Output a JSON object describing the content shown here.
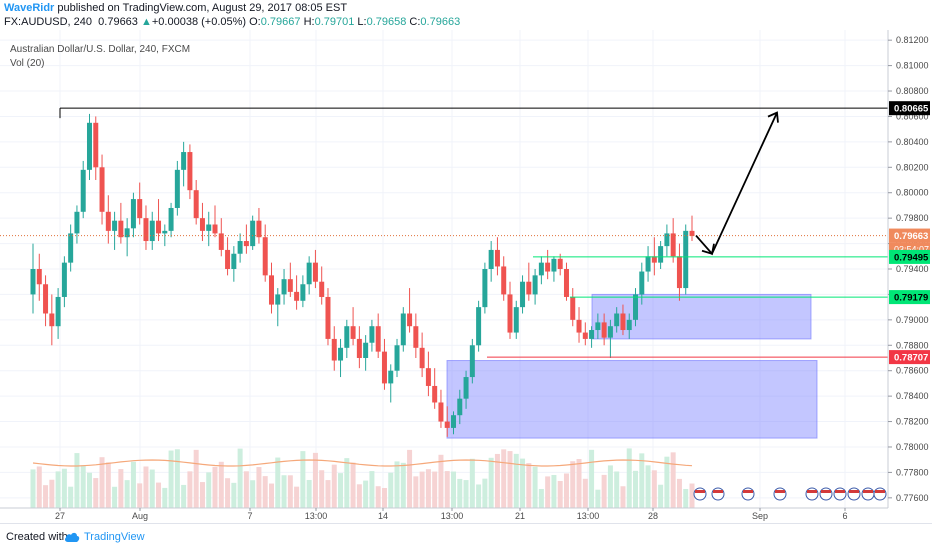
{
  "header": {
    "author": "WaveRidr",
    "published": " published on TradingView.com, August 29, 2017 08:05 EST",
    "symbol": "FX:AUDUSD, 240",
    "last": "0.79663",
    "change": "+0.00038 (+0.05%)",
    "o_label": "O:",
    "o": "0.79667",
    "h_label": "H:",
    "h": "0.79701",
    "l_label": "L:",
    "l": "0.79658",
    "c_label": "C:",
    "c": "0.79663"
  },
  "chart_info": {
    "title": "Australian Dollar/U.S. Dollar, 240, FXCM",
    "volume_label": "Vol (20)"
  },
  "footer": {
    "created_with": "Created with",
    "brand": "TradingView"
  },
  "chart_data": {
    "type": "candlestick",
    "ylim": [
      0.776,
      0.813
    ],
    "y_ticks": [
      "0.81200",
      "0.81000",
      "0.80800",
      "0.80600",
      "0.80400",
      "0.80200",
      "0.80000",
      "0.79800",
      "0.79600",
      "0.79400",
      "0.79200",
      "0.79000",
      "0.78800",
      "0.78600",
      "0.78400",
      "0.78200",
      "0.78000",
      "0.77800",
      "0.77600"
    ],
    "x_ticks": [
      "27",
      "Aug",
      "7",
      "13:00",
      "14",
      "13:00",
      "21",
      "13:00",
      "28",
      "Sep",
      "6"
    ],
    "price_labels": {
      "target": "0.80665",
      "current": "0.79663",
      "countdown": "03:54:07",
      "level_upper": "0.79495",
      "level_mid": "0.79179",
      "level_red": "0.78707"
    },
    "horizontal_levels": [
      {
        "price": 0.80665,
        "color": "#000000",
        "from_date": "Jul 27"
      },
      {
        "price": 0.79495,
        "color": "#00e676",
        "from_date": "Aug 22"
      },
      {
        "price": 0.79179,
        "color": "#00e676",
        "from_date": "Aug 24"
      },
      {
        "price": 0.78707,
        "color": "#f23645",
        "from_date": "Aug 21"
      }
    ],
    "zones": [
      {
        "price_top": 0.7868,
        "price_bottom": 0.7807,
        "from_date": "Aug 16",
        "to_date": "Sep 4",
        "color": "#7b80ff"
      },
      {
        "price_top": 0.792,
        "price_bottom": 0.7885,
        "from_date": "Aug 24",
        "to_date": "Sep 4",
        "color": "#7b80ff"
      }
    ],
    "projection_path": [
      0.79663,
      0.7952,
      0.8063
    ],
    "candles": [
      [
        0.792,
        0.796,
        0.7905,
        0.794
      ],
      [
        0.794,
        0.7952,
        0.7915,
        0.7928
      ],
      [
        0.7928,
        0.7935,
        0.7895,
        0.7905
      ],
      [
        0.7905,
        0.792,
        0.788,
        0.7895
      ],
      [
        0.7895,
        0.7925,
        0.7885,
        0.7918
      ],
      [
        0.7918,
        0.795,
        0.791,
        0.7945
      ],
      [
        0.7945,
        0.7975,
        0.7938,
        0.7968
      ],
      [
        0.7968,
        0.799,
        0.796,
        0.7985
      ],
      [
        0.7985,
        0.8025,
        0.798,
        0.8018
      ],
      [
        0.8018,
        0.8062,
        0.801,
        0.8055
      ],
      [
        0.8055,
        0.806,
        0.801,
        0.802
      ],
      [
        0.802,
        0.803,
        0.7975,
        0.7985
      ],
      [
        0.7985,
        0.7998,
        0.796,
        0.797
      ],
      [
        0.797,
        0.7985,
        0.7955,
        0.7978
      ],
      [
        0.7978,
        0.7992,
        0.796,
        0.7965
      ],
      [
        0.7965,
        0.798,
        0.795,
        0.7972
      ],
      [
        0.7972,
        0.8,
        0.7965,
        0.7995
      ],
      [
        0.7995,
        0.8008,
        0.7975,
        0.798
      ],
      [
        0.798,
        0.799,
        0.7955,
        0.7962
      ],
      [
        0.7962,
        0.7985,
        0.7955,
        0.7978
      ],
      [
        0.7978,
        0.7995,
        0.7962,
        0.7968
      ],
      [
        0.7968,
        0.7975,
        0.7958,
        0.797
      ],
      [
        0.797,
        0.7992,
        0.7965,
        0.7988
      ],
      [
        0.7988,
        0.8025,
        0.7982,
        0.8018
      ],
      [
        0.8018,
        0.804,
        0.8005,
        0.8032
      ],
      [
        0.8032,
        0.8038,
        0.7995,
        0.8002
      ],
      [
        0.8002,
        0.801,
        0.7975,
        0.798
      ],
      [
        0.798,
        0.7992,
        0.7962,
        0.797
      ],
      [
        0.797,
        0.7985,
        0.7958,
        0.7975
      ],
      [
        0.7975,
        0.799,
        0.7965,
        0.7968
      ],
      [
        0.7968,
        0.798,
        0.795,
        0.7955
      ],
      [
        0.7955,
        0.7965,
        0.7935,
        0.794
      ],
      [
        0.794,
        0.7958,
        0.793,
        0.7952
      ],
      [
        0.7952,
        0.7968,
        0.7945,
        0.7962
      ],
      [
        0.7962,
        0.7975,
        0.7952,
        0.7958
      ],
      [
        0.7958,
        0.7982,
        0.7955,
        0.7978
      ],
      [
        0.7978,
        0.7988,
        0.796,
        0.7965
      ],
      [
        0.7965,
        0.7975,
        0.793,
        0.7935
      ],
      [
        0.7935,
        0.7945,
        0.7905,
        0.7912
      ],
      [
        0.7912,
        0.7925,
        0.7895,
        0.792
      ],
      [
        0.792,
        0.794,
        0.7912,
        0.7932
      ],
      [
        0.7932,
        0.7945,
        0.7918,
        0.7922
      ],
      [
        0.7922,
        0.7935,
        0.7908,
        0.7915
      ],
      [
        0.7915,
        0.7935,
        0.791,
        0.7928
      ],
      [
        0.7928,
        0.795,
        0.792,
        0.7945
      ],
      [
        0.7945,
        0.7955,
        0.7925,
        0.793
      ],
      [
        0.793,
        0.7942,
        0.7912,
        0.7918
      ],
      [
        0.7918,
        0.7925,
        0.788,
        0.7885
      ],
      [
        0.7885,
        0.7895,
        0.786,
        0.7868
      ],
      [
        0.7868,
        0.7885,
        0.7855,
        0.7878
      ],
      [
        0.7878,
        0.79,
        0.787,
        0.7895
      ],
      [
        0.7895,
        0.791,
        0.788,
        0.7885
      ],
      [
        0.7885,
        0.7895,
        0.7862,
        0.787
      ],
      [
        0.787,
        0.7888,
        0.786,
        0.7882
      ],
      [
        0.7882,
        0.79,
        0.7875,
        0.7895
      ],
      [
        0.7895,
        0.7905,
        0.787,
        0.7875
      ],
      [
        0.7875,
        0.7885,
        0.7845,
        0.785
      ],
      [
        0.785,
        0.7865,
        0.7835,
        0.786
      ],
      [
        0.786,
        0.7885,
        0.7855,
        0.788
      ],
      [
        0.788,
        0.791,
        0.7875,
        0.7905
      ],
      [
        0.7905,
        0.7925,
        0.789,
        0.7895
      ],
      [
        0.7895,
        0.7905,
        0.787,
        0.7878
      ],
      [
        0.7878,
        0.789,
        0.7855,
        0.7862
      ],
      [
        0.7862,
        0.7875,
        0.784,
        0.7848
      ],
      [
        0.7848,
        0.7862,
        0.783,
        0.7835
      ],
      [
        0.7835,
        0.7845,
        0.7815,
        0.782
      ],
      [
        0.782,
        0.7832,
        0.7808,
        0.7815
      ],
      [
        0.7815,
        0.7828,
        0.781,
        0.7825
      ],
      [
        0.7825,
        0.7845,
        0.7818,
        0.7838
      ],
      [
        0.7838,
        0.786,
        0.783,
        0.7855
      ],
      [
        0.7855,
        0.7885,
        0.785,
        0.788
      ],
      [
        0.788,
        0.7915,
        0.7875,
        0.791
      ],
      [
        0.791,
        0.7945,
        0.7905,
        0.794
      ],
      [
        0.794,
        0.7962,
        0.793,
        0.7955
      ],
      [
        0.7955,
        0.7965,
        0.7935,
        0.7942
      ],
      [
        0.7942,
        0.795,
        0.7915,
        0.792
      ],
      [
        0.792,
        0.793,
        0.7885,
        0.789
      ],
      [
        0.789,
        0.7915,
        0.7885,
        0.791
      ],
      [
        0.791,
        0.7935,
        0.7905,
        0.793
      ],
      [
        0.793,
        0.7945,
        0.7915,
        0.792
      ],
      [
        0.792,
        0.794,
        0.7912,
        0.7935
      ],
      [
        0.7935,
        0.795,
        0.7928,
        0.7945
      ],
      [
        0.7945,
        0.7955,
        0.7932,
        0.7938
      ],
      [
        0.7938,
        0.795,
        0.793,
        0.7948
      ],
      [
        0.7948,
        0.7952,
        0.7935,
        0.794
      ],
      [
        0.794,
        0.7945,
        0.7915,
        0.7918
      ],
      [
        0.7918,
        0.7925,
        0.7895,
        0.79
      ],
      [
        0.79,
        0.791,
        0.7882,
        0.789
      ],
      [
        0.789,
        0.7898,
        0.788,
        0.7885
      ],
      [
        0.7885,
        0.7895,
        0.7878,
        0.7892
      ],
      [
        0.7892,
        0.7905,
        0.7885,
        0.7898
      ],
      [
        0.7898,
        0.7905,
        0.788,
        0.7886
      ],
      [
        0.7886,
        0.79,
        0.787,
        0.7895
      ],
      [
        0.7895,
        0.791,
        0.789,
        0.7905
      ],
      [
        0.7905,
        0.7912,
        0.7888,
        0.7892
      ],
      [
        0.7892,
        0.7905,
        0.7885,
        0.79
      ],
      [
        0.79,
        0.7925,
        0.7895,
        0.792
      ],
      [
        0.792,
        0.7945,
        0.7912,
        0.7938
      ],
      [
        0.7938,
        0.7958,
        0.793,
        0.795
      ],
      [
        0.795,
        0.7965,
        0.7935,
        0.7945
      ],
      [
        0.7945,
        0.7962,
        0.794,
        0.7958
      ],
      [
        0.7958,
        0.7975,
        0.795,
        0.7968
      ],
      [
        0.7968,
        0.798,
        0.7945,
        0.795
      ],
      [
        0.795,
        0.796,
        0.7915,
        0.7925
      ],
      [
        0.7925,
        0.7975,
        0.792,
        0.797
      ],
      [
        0.797,
        0.7982,
        0.7962,
        0.7966
      ]
    ]
  }
}
